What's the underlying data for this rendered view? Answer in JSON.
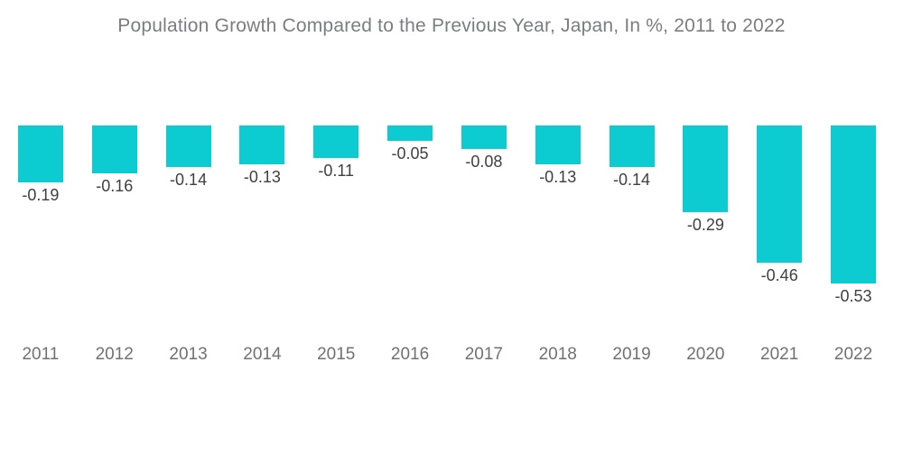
{
  "chart_data": {
    "type": "bar",
    "title": "Population Growth Compared to the Previous Year, Japan, In %, 2011 to 2022",
    "categories": [
      "2011",
      "2012",
      "2013",
      "2014",
      "2015",
      "2016",
      "2017",
      "2018",
      "2019",
      "2020",
      "2021",
      "2022"
    ],
    "values": [
      -0.19,
      -0.16,
      -0.14,
      -0.13,
      -0.11,
      -0.05,
      -0.08,
      -0.13,
      -0.14,
      -0.29,
      -0.46,
      -0.53
    ],
    "data_labels": [
      "-0.19",
      "-0.16",
      "-0.14",
      "-0.13",
      "-0.11",
      "-0.05",
      "-0.08",
      "-0.13",
      "-0.14",
      "-0.29",
      "-0.46",
      "-0.53"
    ],
    "xlabel": "",
    "ylabel": "",
    "ylim": [
      -0.53,
      0
    ],
    "grid": false,
    "legend": false,
    "orientation": "vertical-negative",
    "colors": {
      "bar": "#0CCBD1",
      "title_text": "#7B7D80",
      "value_label_text": "#3F4042",
      "axis_label_text": "#6F7174",
      "background": "#FFFFFF"
    }
  }
}
